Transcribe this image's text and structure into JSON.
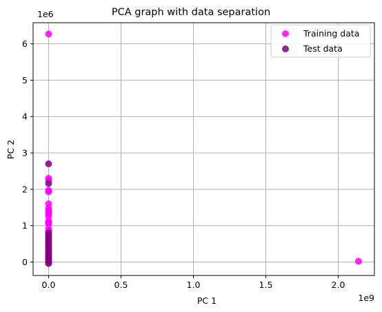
{
  "chart_data": {
    "type": "scatter",
    "title": "PCA graph with data separation",
    "xlabel": "PC 1",
    "ylabel": "PC 2",
    "x_offset_label": "1e9",
    "y_offset_label": "1e6",
    "x_scale": 1000000000,
    "y_scale": 1000000,
    "xlim": [
      -0.107,
      2.25
    ],
    "ylim": [
      -0.37,
      6.58
    ],
    "x_ticks": [
      0.0,
      0.5,
      1.0,
      1.5,
      2.0
    ],
    "x_tick_labels": [
      "0.0",
      "0.5",
      "1.0",
      "1.5",
      "2.0"
    ],
    "y_ticks": [
      0,
      1,
      2,
      3,
      4,
      5,
      6
    ],
    "y_tick_labels": [
      "0",
      "1",
      "2",
      "3",
      "4",
      "5",
      "6"
    ],
    "grid": true,
    "legend_position": "top-right",
    "series": [
      {
        "name": "Training data",
        "color": "#ff00ff",
        "points": [
          [
            0,
            6.27
          ],
          [
            0,
            2.3
          ],
          [
            0,
            2.25
          ],
          [
            0,
            1.97
          ],
          [
            0,
            1.93
          ],
          [
            0,
            1.6
          ],
          [
            0,
            1.48
          ],
          [
            0,
            1.42
          ],
          [
            0,
            1.38
          ],
          [
            0,
            1.33
          ],
          [
            0,
            1.25
          ],
          [
            0,
            1.12
          ],
          [
            0,
            1.08
          ],
          [
            0,
            1.05
          ],
          [
            0,
            0.92
          ],
          [
            0,
            0.85
          ],
          [
            0,
            0.78
          ],
          [
            0,
            0.72
          ],
          [
            0,
            0.6
          ],
          [
            0,
            0.5
          ],
          [
            0,
            0.4
          ],
          [
            0,
            0.3
          ],
          [
            0,
            0.2
          ],
          [
            0,
            0.1
          ],
          [
            0,
            0.02
          ],
          [
            2.14,
            0.02
          ]
        ]
      },
      {
        "name": "Test data",
        "color": "#800080",
        "points": [
          [
            0,
            2.7
          ],
          [
            0,
            2.16
          ],
          [
            0,
            0.8
          ],
          [
            0,
            0.75
          ],
          [
            0,
            0.7
          ],
          [
            0,
            0.65
          ],
          [
            0,
            0.6
          ],
          [
            0,
            0.55
          ],
          [
            0,
            0.5
          ],
          [
            0,
            0.45
          ],
          [
            0,
            0.4
          ],
          [
            0,
            0.35
          ],
          [
            0,
            0.3
          ],
          [
            0,
            0.25
          ],
          [
            0,
            0.2
          ],
          [
            0,
            0.15
          ],
          [
            0,
            0.1
          ],
          [
            0,
            0.05
          ],
          [
            0,
            0.0
          ],
          [
            0,
            -0.04
          ]
        ]
      }
    ]
  }
}
